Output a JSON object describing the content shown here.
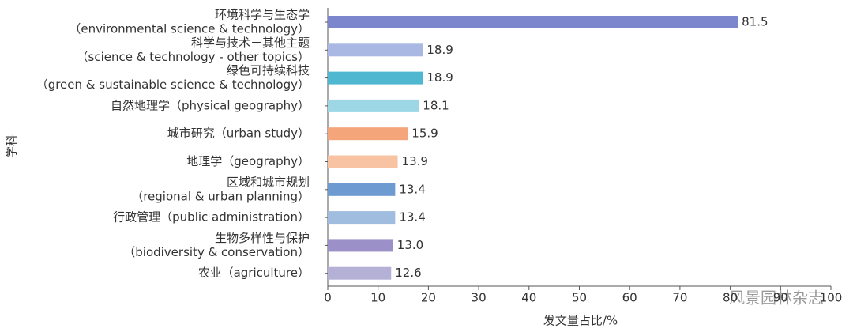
{
  "chart_data": {
    "type": "barh",
    "categories": [
      [
        "环境科学与生态学",
        "（environmental science & technology）"
      ],
      [
        "科学与技术－其他主题",
        "（science & technology - other topics）"
      ],
      [
        "绿色可持续科技",
        "（green & sustainable science & technology）"
      ],
      [
        "自然地理学（physical geography）"
      ],
      [
        "城市研究（urban study）"
      ],
      [
        "地理学（geography）"
      ],
      [
        "区域和城市规划",
        "（regional & urban planning）"
      ],
      [
        "行政管理（public administration）"
      ],
      [
        "生物多样性与保护",
        "（biodiversity & conservation）"
      ],
      [
        "农业（agriculture）"
      ]
    ],
    "values": [
      81.5,
      18.9,
      18.9,
      18.1,
      15.9,
      13.9,
      13.4,
      13.4,
      13.0,
      12.6
    ],
    "value_labels": [
      "81.5",
      "18.9",
      "18.9",
      "18.1",
      "15.9",
      "13.9",
      "13.4",
      "13.4",
      "13.0",
      "12.6"
    ],
    "colors": [
      "#7b86cc",
      "#a9b8e3",
      "#4fb8d0",
      "#9dd7e6",
      "#f4a57a",
      "#f7c3a3",
      "#6d9bd1",
      "#a0bde0",
      "#9b90c8",
      "#b5b0d6"
    ],
    "xlim": [
      0,
      100
    ],
    "xticks": [
      0,
      10,
      20,
      30,
      40,
      50,
      60,
      70,
      80,
      90,
      100
    ],
    "xlabel": "发文量占比/%",
    "ylabel": "学科",
    "watermark": "风景园林杂志"
  }
}
